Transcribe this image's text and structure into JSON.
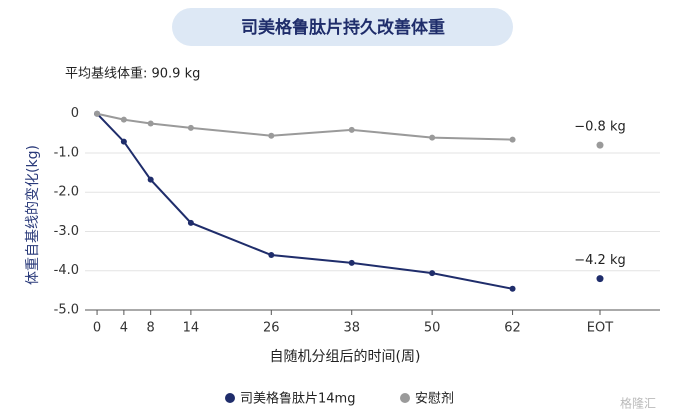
{
  "chart_data": {
    "type": "line",
    "title": "司美格鲁肽片持久改善体重",
    "subtitle": "平均基线体重: 90.9 kg",
    "y_label": "体重自基线的变化(kg)",
    "x_label": "自随机分组后的时间(周)",
    "x": [
      0,
      4,
      8,
      14,
      26,
      38,
      50,
      62
    ],
    "xlim": [
      -1.8,
      84
    ],
    "xticks": [
      0,
      4,
      8,
      14,
      26,
      38,
      50,
      62
    ],
    "eot_tick": "EOT",
    "ylim": [
      -5,
      0.35
    ],
    "yticks": [
      {
        "value": 0,
        "label": "0"
      },
      {
        "value": -1,
        "label": "-1.0"
      },
      {
        "value": -2,
        "label": "-2.0"
      },
      {
        "value": -3,
        "label": "-3.0"
      },
      {
        "value": -4,
        "label": "-4.0"
      },
      {
        "value": -5,
        "label": "-5.0"
      }
    ],
    "grid": true,
    "series": [
      {
        "name": "司美格鲁肽片14mg",
        "color": "#1f2d6b",
        "values": [
          0,
          -0.71,
          -1.68,
          -2.78,
          -3.6,
          -3.8,
          -4.06,
          -4.46
        ],
        "eot": {
          "value": -4.2,
          "label": "−4.2 kg"
        }
      },
      {
        "name": "安慰剂",
        "color": "#9a9a9a",
        "values": [
          0,
          -0.15,
          -0.25,
          -0.36,
          -0.56,
          -0.41,
          -0.61,
          -0.66
        ],
        "eot": {
          "value": -0.8,
          "label": "−0.8 kg"
        }
      }
    ],
    "watermark": "格隆汇"
  }
}
